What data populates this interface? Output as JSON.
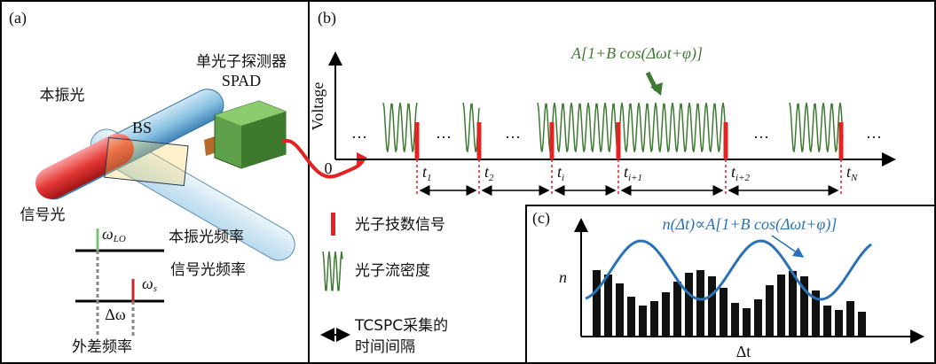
{
  "panel_a": {
    "label": "(a)",
    "detector": {
      "name": "单光子探测器",
      "model": "SPAD"
    },
    "local_beam": "本振光",
    "splitter": "BS",
    "signal_beam": "信号光",
    "lo_level": {
      "symbol": "ω",
      "subscript": "LO",
      "caption": "本振光频率"
    },
    "signal_level": {
      "symbol": "ω",
      "subscript": "s",
      "caption": "信号光频率"
    },
    "difference": {
      "symbol": "Δω",
      "caption": "外差频率"
    }
  },
  "panel_b": {
    "label": "(b)",
    "y_axis": "Voltage",
    "origin": "0",
    "formula": "A[1+B cos(Δωt+φ)]",
    "ellipsis": "…",
    "times": [
      {
        "symbol": "t",
        "subscript": "1"
      },
      {
        "symbol": "t",
        "subscript": "2"
      },
      {
        "symbol": "t",
        "subscript": "i"
      },
      {
        "symbol": "t",
        "subscript": "i+1"
      },
      {
        "symbol": "t",
        "subscript": "i+2"
      },
      {
        "symbol": "t",
        "subscript": "N"
      }
    ],
    "legend": {
      "photon_count": "光子技数信号",
      "photon_flux": "光子流密度",
      "interval": [
        "TCSPC采集的",
        "时间间隔"
      ]
    }
  },
  "panel_c": {
    "label": "(c)",
    "formula": "n(Δt)∝A[1+B cos(Δωt+φ)]",
    "y_axis": "n",
    "x_axis": "Δt"
  }
}
